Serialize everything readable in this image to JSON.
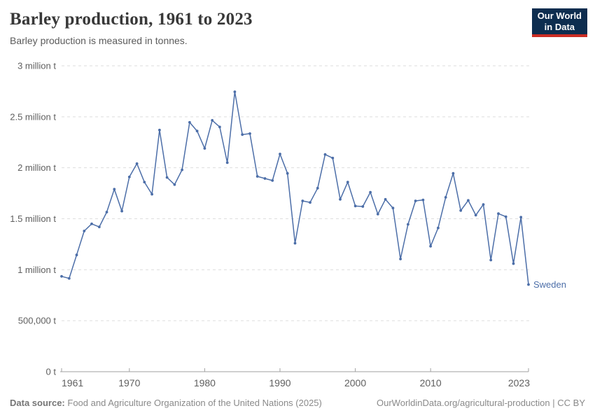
{
  "header": {
    "title": "Barley production, 1961 to 2023",
    "subtitle": "Barley production is measured in tonnes."
  },
  "logo": {
    "line1": "Our World",
    "line2": "in Data",
    "bg_color": "#0d2d4f",
    "accent_color": "#cb2d24"
  },
  "chart_data": {
    "type": "line",
    "title": "Barley production, 1961 to 2023",
    "unit": "tonnes",
    "xlabel": "",
    "ylabel": "",
    "xlim": [
      1961,
      2023
    ],
    "ylim": [
      0,
      3000000
    ],
    "grid": "horizontal-dashed",
    "legend_position": "end-of-line-label",
    "x_ticks": [
      1961,
      1970,
      1980,
      1990,
      2000,
      2010,
      2023
    ],
    "y_ticks": [
      {
        "value": 0,
        "label": "0 t"
      },
      {
        "value": 500000,
        "label": "500,000 t"
      },
      {
        "value": 1000000,
        "label": "1 million t"
      },
      {
        "value": 1500000,
        "label": "1.5 million t"
      },
      {
        "value": 2000000,
        "label": "2 million t"
      },
      {
        "value": 2500000,
        "label": "2.5 million t"
      },
      {
        "value": 3000000,
        "label": "3 million t"
      }
    ],
    "x": [
      1961,
      1962,
      1963,
      1964,
      1965,
      1966,
      1967,
      1968,
      1969,
      1970,
      1971,
      1972,
      1973,
      1974,
      1975,
      1976,
      1977,
      1978,
      1979,
      1980,
      1981,
      1982,
      1983,
      1984,
      1985,
      1986,
      1987,
      1988,
      1989,
      1990,
      1991,
      1992,
      1993,
      1994,
      1995,
      1996,
      1997,
      1998,
      1999,
      2000,
      2001,
      2002,
      2003,
      2004,
      2005,
      2006,
      2007,
      2008,
      2009,
      2010,
      2011,
      2012,
      2013,
      2014,
      2015,
      2016,
      2017,
      2018,
      2019,
      2020,
      2021,
      2022,
      2023
    ],
    "series": [
      {
        "name": "Sweden",
        "color": "#4c6ea8",
        "values": [
          935000,
          915000,
          1145000,
          1380000,
          1450000,
          1420000,
          1565000,
          1790000,
          1575000,
          1910000,
          2040000,
          1860000,
          1740000,
          2370000,
          1905000,
          1835000,
          1980000,
          2445000,
          2360000,
          2190000,
          2465000,
          2400000,
          2050000,
          2745000,
          2325000,
          2335000,
          1915000,
          1895000,
          1875000,
          2135000,
          1945000,
          1260000,
          1675000,
          1660000,
          1800000,
          2130000,
          2095000,
          1690000,
          1860000,
          1625000,
          1620000,
          1760000,
          1545000,
          1690000,
          1605000,
          1105000,
          1445000,
          1675000,
          1685000,
          1230000,
          1410000,
          1710000,
          1945000,
          1580000,
          1680000,
          1535000,
          1640000,
          1095000,
          1550000,
          1520000,
          1060000,
          1515000,
          855000
        ]
      }
    ],
    "style": {
      "grid_color": "#dddddd",
      "axis_color": "#a2a2a2",
      "tick_label_color": "#5f5f5f"
    }
  },
  "footer": {
    "source_label": "Data source:",
    "source_text": "Food and Agriculture Organization of the United Nations (2025)",
    "url": "OurWorldinData.org/agricultural-production",
    "divider": "|",
    "license": "CC BY"
  }
}
